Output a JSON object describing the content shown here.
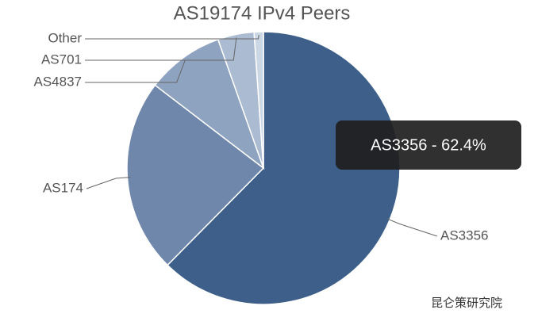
{
  "chart_data": {
    "type": "pie",
    "title": "AS19174 IPv4 Peers",
    "categories": [
      "AS3356",
      "AS174",
      "AS4837",
      "AS701",
      "Other"
    ],
    "values": [
      62.4,
      23,
      9.2,
      4.3,
      1.1
    ],
    "colors": [
      "#3d5f8a",
      "#6f87ab",
      "#8ea3c0",
      "#aabbd2",
      "#cbd7e5"
    ],
    "tooltip": "AS3356 - 62.4%",
    "watermark": "昆仑策研究院"
  }
}
